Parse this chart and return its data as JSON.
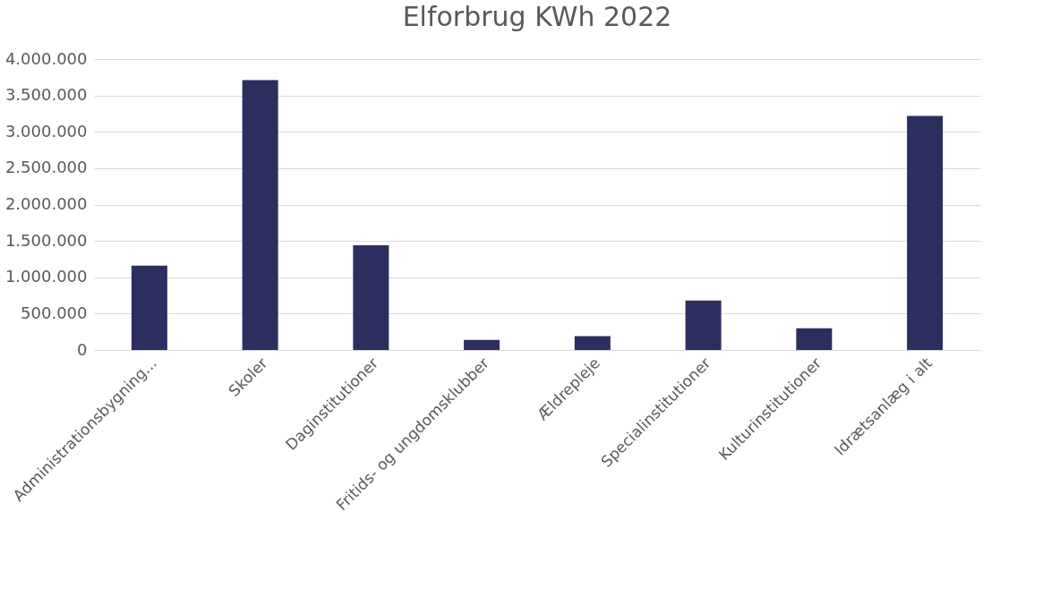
{
  "chart_data": {
    "type": "bar",
    "title": "Elforbrug KWh 2022",
    "categories": [
      "Administrationsbygning...",
      "Skoler",
      "Daginstitutioner",
      "Fritids- og ungdomsklubber",
      "Ældrepleje",
      "Specialinstitutioner",
      "Kulturinstitutioner",
      "Idrætsanlæg i alt"
    ],
    "values": [
      1160000,
      3710000,
      1440000,
      140000,
      190000,
      680000,
      300000,
      3220000
    ],
    "color": "#2b2e5f",
    "ylim": [
      0,
      4000000
    ],
    "yticks": [
      {
        "value": 0,
        "label": "0"
      },
      {
        "value": 500000,
        "label": "500.000"
      },
      {
        "value": 1000000,
        "label": "1.000.000"
      },
      {
        "value": 1500000,
        "label": "1.500.000"
      },
      {
        "value": 2000000,
        "label": "2.000.000"
      },
      {
        "value": 2500000,
        "label": "2.500.000"
      },
      {
        "value": 3000000,
        "label": "3.000.000"
      },
      {
        "value": 3500000,
        "label": "3.500.000"
      },
      {
        "value": 4000000,
        "label": "4.000.000"
      }
    ],
    "grid": "y"
  }
}
